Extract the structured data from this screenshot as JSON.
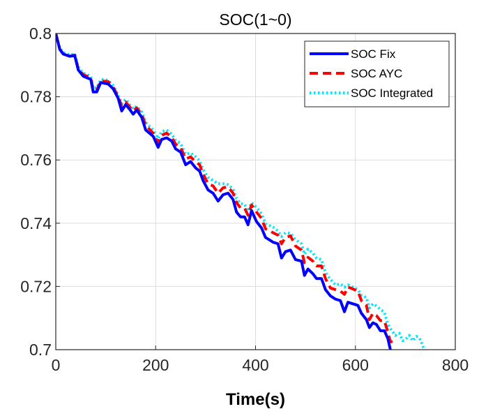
{
  "chart_data": {
    "type": "line",
    "title": "SOC(1~0)",
    "xlabel": "Time(s)",
    "ylabel": "",
    "xlim": [
      0,
      800
    ],
    "ylim": [
      0.7,
      0.8
    ],
    "xticks": [
      0,
      200,
      400,
      600,
      800
    ],
    "xtick_labels": [
      "0",
      "200",
      "400",
      "600",
      "800"
    ],
    "yticks": [
      0.7,
      0.72,
      0.74,
      0.76,
      0.78,
      0.8
    ],
    "ytick_labels": [
      "0.7",
      "0.72",
      "0.74",
      "0.76",
      "0.78",
      "0.8"
    ],
    "grid": true,
    "legend_position": "top-right",
    "series": [
      {
        "name": "SOC Fix",
        "color": "#0000ff",
        "style": "solid",
        "points": [
          [
            0,
            0.8
          ],
          [
            8,
            0.795
          ],
          [
            15,
            0.7935
          ],
          [
            28,
            0.7928
          ],
          [
            38,
            0.793
          ],
          [
            45,
            0.7885
          ],
          [
            55,
            0.7865
          ],
          [
            70,
            0.7855
          ],
          [
            75,
            0.7815
          ],
          [
            82,
            0.7815
          ],
          [
            90,
            0.7845
          ],
          [
            105,
            0.784
          ],
          [
            115,
            0.7825
          ],
          [
            125,
            0.7795
          ],
          [
            132,
            0.7755
          ],
          [
            140,
            0.7775
          ],
          [
            148,
            0.776
          ],
          [
            155,
            0.7745
          ],
          [
            162,
            0.7758
          ],
          [
            172,
            0.7735
          ],
          [
            180,
            0.7695
          ],
          [
            195,
            0.7675
          ],
          [
            205,
            0.764
          ],
          [
            212,
            0.7665
          ],
          [
            222,
            0.767
          ],
          [
            232,
            0.766
          ],
          [
            240,
            0.7635
          ],
          [
            250,
            0.7625
          ],
          [
            260,
            0.7585
          ],
          [
            270,
            0.7595
          ],
          [
            280,
            0.7575
          ],
          [
            288,
            0.7565
          ],
          [
            295,
            0.7535
          ],
          [
            305,
            0.7505
          ],
          [
            315,
            0.7495
          ],
          [
            325,
            0.747
          ],
          [
            335,
            0.749
          ],
          [
            345,
            0.7495
          ],
          [
            355,
            0.7475
          ],
          [
            362,
            0.7435
          ],
          [
            370,
            0.742
          ],
          [
            378,
            0.742
          ],
          [
            385,
            0.7395
          ],
          [
            392,
            0.744
          ],
          [
            402,
            0.7405
          ],
          [
            412,
            0.7385
          ],
          [
            420,
            0.7355
          ],
          [
            435,
            0.734
          ],
          [
            445,
            0.7335
          ],
          [
            452,
            0.729
          ],
          [
            460,
            0.731
          ],
          [
            470,
            0.7315
          ],
          [
            480,
            0.7285
          ],
          [
            492,
            0.728
          ],
          [
            498,
            0.7235
          ],
          [
            505,
            0.7255
          ],
          [
            515,
            0.724
          ],
          [
            522,
            0.7225
          ],
          [
            532,
            0.7225
          ],
          [
            540,
            0.719
          ],
          [
            550,
            0.717
          ],
          [
            560,
            0.716
          ],
          [
            570,
            0.7155
          ],
          [
            578,
            0.712
          ],
          [
            585,
            0.715
          ],
          [
            595,
            0.7145
          ],
          [
            605,
            0.714
          ],
          [
            612,
            0.7115
          ],
          [
            622,
            0.7095
          ],
          [
            628,
            0.707
          ],
          [
            635,
            0.7085
          ],
          [
            642,
            0.708
          ],
          [
            650,
            0.706
          ],
          [
            658,
            0.706
          ],
          [
            665,
            0.7035
          ],
          [
            670,
            0.7
          ]
        ]
      },
      {
        "name": "SOC AYC",
        "color": "#ff0000",
        "style": "dashed",
        "points": [
          [
            0,
            0.8
          ],
          [
            8,
            0.795
          ],
          [
            15,
            0.7935
          ],
          [
            28,
            0.7928
          ],
          [
            38,
            0.7932
          ],
          [
            45,
            0.7888
          ],
          [
            55,
            0.787
          ],
          [
            70,
            0.786
          ],
          [
            75,
            0.782
          ],
          [
            82,
            0.782
          ],
          [
            90,
            0.785
          ],
          [
            105,
            0.7848
          ],
          [
            115,
            0.783
          ],
          [
            125,
            0.78
          ],
          [
            132,
            0.777
          ],
          [
            140,
            0.7783
          ],
          [
            148,
            0.7768
          ],
          [
            155,
            0.7755
          ],
          [
            162,
            0.7765
          ],
          [
            172,
            0.7745
          ],
          [
            180,
            0.771
          ],
          [
            195,
            0.7685
          ],
          [
            205,
            0.7655
          ],
          [
            212,
            0.7678
          ],
          [
            222,
            0.7685
          ],
          [
            232,
            0.7672
          ],
          [
            240,
            0.765
          ],
          [
            250,
            0.764
          ],
          [
            260,
            0.7603
          ],
          [
            270,
            0.761
          ],
          [
            280,
            0.7594
          ],
          [
            288,
            0.7585
          ],
          [
            295,
            0.7555
          ],
          [
            305,
            0.7525
          ],
          [
            315,
            0.7518
          ],
          [
            325,
            0.7495
          ],
          [
            335,
            0.7512
          ],
          [
            345,
            0.7515
          ],
          [
            355,
            0.7495
          ],
          [
            362,
            0.7465
          ],
          [
            370,
            0.7448
          ],
          [
            378,
            0.7448
          ],
          [
            385,
            0.7425
          ],
          [
            392,
            0.7458
          ],
          [
            402,
            0.7435
          ],
          [
            412,
            0.7415
          ],
          [
            420,
            0.7382
          ],
          [
            435,
            0.737
          ],
          [
            445,
            0.7362
          ],
          [
            452,
            0.7335
          ],
          [
            460,
            0.7355
          ],
          [
            470,
            0.736
          ],
          [
            480,
            0.7328
          ],
          [
            492,
            0.7315
          ],
          [
            498,
            0.7275
          ],
          [
            505,
            0.7292
          ],
          [
            515,
            0.728
          ],
          [
            522,
            0.7265
          ],
          [
            532,
            0.7265
          ],
          [
            540,
            0.7225
          ],
          [
            550,
            0.7195
          ],
          [
            560,
            0.719
          ],
          [
            570,
            0.7185
          ],
          [
            578,
            0.7175
          ],
          [
            585,
            0.7198
          ],
          [
            595,
            0.7192
          ],
          [
            605,
            0.7185
          ],
          [
            612,
            0.7155
          ],
          [
            622,
            0.714
          ],
          [
            628,
            0.7095
          ],
          [
            635,
            0.7115
          ],
          [
            642,
            0.7108
          ],
          [
            650,
            0.7092
          ],
          [
            658,
            0.7092
          ],
          [
            665,
            0.7055
          ],
          [
            670,
            0.7025
          ],
          [
            678,
            0.7025
          ]
        ]
      },
      {
        "name": "SOC Integrated",
        "color": "#00e5ff",
        "style": "dotted",
        "points": [
          [
            0,
            0.8
          ],
          [
            8,
            0.7955
          ],
          [
            15,
            0.794
          ],
          [
            28,
            0.7932
          ],
          [
            38,
            0.7935
          ],
          [
            45,
            0.7893
          ],
          [
            55,
            0.7875
          ],
          [
            70,
            0.7865
          ],
          [
            75,
            0.7828
          ],
          [
            82,
            0.7828
          ],
          [
            90,
            0.7855
          ],
          [
            105,
            0.7852
          ],
          [
            115,
            0.7835
          ],
          [
            125,
            0.7805
          ],
          [
            132,
            0.7778
          ],
          [
            140,
            0.7792
          ],
          [
            148,
            0.7775
          ],
          [
            155,
            0.7762
          ],
          [
            162,
            0.777
          ],
          [
            172,
            0.7752
          ],
          [
            180,
            0.7718
          ],
          [
            195,
            0.7695
          ],
          [
            205,
            0.7668
          ],
          [
            212,
            0.769
          ],
          [
            222,
            0.7695
          ],
          [
            232,
            0.7682
          ],
          [
            240,
            0.7662
          ],
          [
            250,
            0.7652
          ],
          [
            260,
            0.7618
          ],
          [
            270,
            0.7622
          ],
          [
            280,
            0.761
          ],
          [
            288,
            0.7598
          ],
          [
            295,
            0.757
          ],
          [
            305,
            0.7545
          ],
          [
            315,
            0.7535
          ],
          [
            325,
            0.7525
          ],
          [
            335,
            0.7525
          ],
          [
            345,
            0.7522
          ],
          [
            355,
            0.7508
          ],
          [
            362,
            0.7478
          ],
          [
            370,
            0.7462
          ],
          [
            378,
            0.746
          ],
          [
            385,
            0.7438
          ],
          [
            392,
            0.7465
          ],
          [
            402,
            0.745
          ],
          [
            412,
            0.743
          ],
          [
            420,
            0.7398
          ],
          [
            435,
            0.7388
          ],
          [
            445,
            0.7375
          ],
          [
            452,
            0.7358
          ],
          [
            460,
            0.737
          ],
          [
            470,
            0.7368
          ],
          [
            480,
            0.7348
          ],
          [
            492,
            0.7335
          ],
          [
            498,
            0.7302
          ],
          [
            505,
            0.7318
          ],
          [
            515,
            0.7305
          ],
          [
            522,
            0.729
          ],
          [
            532,
            0.7285
          ],
          [
            540,
            0.7245
          ],
          [
            550,
            0.7222
          ],
          [
            560,
            0.7205
          ],
          [
            570,
            0.7208
          ],
          [
            578,
            0.7198
          ],
          [
            585,
            0.7205
          ],
          [
            595,
            0.7198
          ],
          [
            605,
            0.719
          ],
          [
            612,
            0.7172
          ],
          [
            622,
            0.7165
          ],
          [
            628,
            0.7132
          ],
          [
            635,
            0.7145
          ],
          [
            642,
            0.7138
          ],
          [
            650,
            0.7128
          ],
          [
            658,
            0.7118
          ],
          [
            665,
            0.708
          ],
          [
            672,
            0.7062
          ],
          [
            680,
            0.7045
          ],
          [
            688,
            0.7052
          ],
          [
            695,
            0.7028
          ],
          [
            700,
            0.7032
          ],
          [
            708,
            0.7045
          ],
          [
            715,
            0.7028
          ],
          [
            722,
            0.7042
          ],
          [
            728,
            0.7038
          ],
          [
            733,
            0.702
          ],
          [
            738,
            0.7
          ]
        ]
      }
    ]
  }
}
